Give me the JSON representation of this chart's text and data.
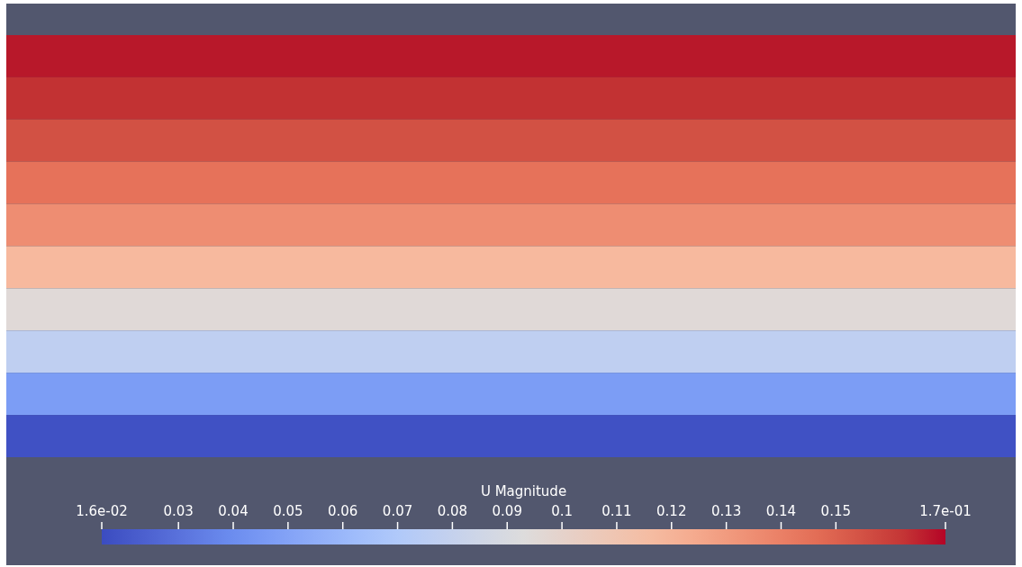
{
  "chart_data": {
    "type": "heatmap",
    "clabel": "U Magnitude",
    "categories": [
      null
    ],
    "y_categories": [
      null,
      null,
      null,
      null,
      null,
      null,
      null,
      null,
      null,
      null
    ],
    "cells": [
      [
        0.168
      ],
      [
        0.163
      ],
      [
        0.155
      ],
      [
        0.145
      ],
      [
        0.135
      ],
      [
        0.118
      ],
      [
        0.095
      ],
      [
        0.077
      ],
      [
        0.047
      ],
      [
        0.018
      ]
    ],
    "clim": [
      0.016,
      0.17
    ],
    "cticks": [
      {
        "value": 0.016,
        "label": "1.6e-02"
      },
      0.03,
      0.04,
      0.05,
      0.06,
      0.07,
      0.08,
      0.09,
      0.1,
      0.11,
      0.12,
      0.13,
      0.14,
      0.15,
      {
        "value": 0.17,
        "label": "1.7e-01"
      }
    ]
  }
}
